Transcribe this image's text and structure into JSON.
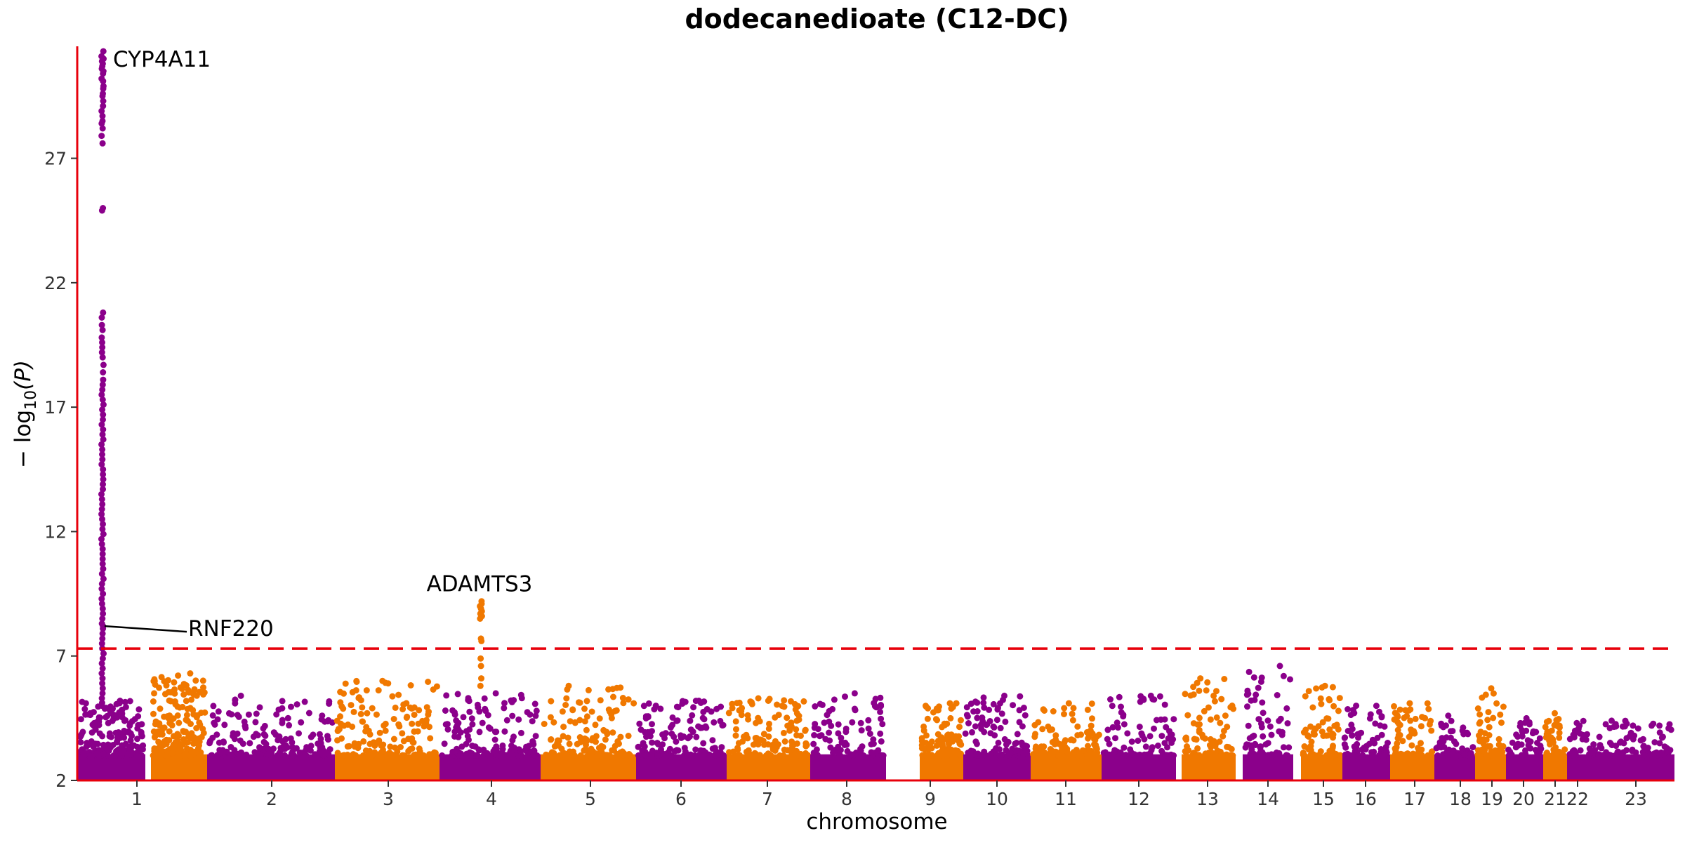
{
  "chart_data": {
    "type": "scatter",
    "subtype": "manhattan",
    "title": "dodecanedioate (C12-DC)",
    "xlabel": "chromosome",
    "ylabel_parts": {
      "prefix": "− log",
      "subscript": "10",
      "suffix": "(P)"
    },
    "ylim": [
      2,
      31.5
    ],
    "yticks": [
      2,
      7,
      12,
      17,
      22,
      27
    ],
    "significance_threshold": 7.3,
    "colors": {
      "odd": "#8B008B",
      "even": "#F07800",
      "axis": "#E8000B",
      "threshold": "#E8000B",
      "text": "#000000"
    },
    "chromosomes": [
      {
        "label": "1",
        "n": 210,
        "peak": 5.2
      },
      {
        "label": "2",
        "n": 200,
        "peak": 6.3
      },
      {
        "label": "3",
        "n": 160,
        "peak": 5.4
      },
      {
        "label": "4",
        "n": 155,
        "peak": 6.0
      },
      {
        "label": "5",
        "n": 150,
        "peak": 5.5
      },
      {
        "label": "6",
        "n": 140,
        "peak": 5.8
      },
      {
        "label": "7",
        "n": 130,
        "peak": 5.2
      },
      {
        "label": "8",
        "n": 120,
        "peak": 5.3
      },
      {
        "label": "9",
        "n": 90,
        "peak": 5.5
      },
      {
        "label": "10",
        "n": 105,
        "peak": 5.1
      },
      {
        "label": "11",
        "n": 110,
        "peak": 5.4
      },
      {
        "label": "12",
        "n": 110,
        "peak": 5.1
      },
      {
        "label": "13",
        "n": 85,
        "peak": 5.4
      },
      {
        "label": "14",
        "n": 80,
        "peak": 6.1
      },
      {
        "label": "15",
        "n": 70,
        "peak": 6.6
      },
      {
        "label": "16",
        "n": 70,
        "peak": 5.8
      },
      {
        "label": "17",
        "n": 70,
        "peak": 5.0
      },
      {
        "label": "18",
        "n": 65,
        "peak": 5.1
      },
      {
        "label": "19",
        "n": 55,
        "peak": 4.6
      },
      {
        "label": "20",
        "n": 60,
        "peak": 5.7
      },
      {
        "label": "21",
        "n": 40,
        "peak": 4.5
      },
      {
        "label": "22",
        "n": 40,
        "peak": 4.7
      },
      {
        "label": "23",
        "n": 120,
        "peak": 4.4
      }
    ],
    "hit_loci": [
      {
        "gene": "CYP4A11",
        "chromosome": "1",
        "max_value": 31.3,
        "values": [
          31.3,
          31.1,
          31.0,
          30.9,
          30.8,
          30.7,
          30.6,
          30.5,
          30.4,
          30.2,
          30.1,
          29.9,
          29.8,
          29.6,
          29.5,
          29.3,
          29.1,
          28.9,
          28.7,
          28.5,
          28.4,
          28.2,
          27.9,
          27.6,
          25.0,
          24.9,
          20.8,
          20.6,
          20.3,
          20.1,
          19.8,
          19.6,
          19.4,
          19.2,
          19.0,
          18.7,
          18.4,
          18.1,
          17.9,
          17.7,
          17.5,
          17.3,
          17.1,
          16.9,
          16.7,
          16.5,
          16.3,
          16.1,
          15.9,
          15.7,
          15.5,
          15.3,
          15.1,
          14.9,
          14.7,
          14.5,
          14.3,
          14.1,
          13.9,
          13.7,
          13.5,
          13.3,
          13.1,
          12.9,
          12.7,
          12.5,
          12.3,
          12.1,
          11.9,
          11.7,
          11.5,
          11.3,
          11.1,
          10.9,
          10.7,
          10.5,
          10.3,
          10.1,
          9.9,
          9.7,
          9.5,
          9.3,
          9.1,
          8.9,
          8.7,
          8.5,
          8.3,
          8.1,
          7.9,
          7.7,
          7.5,
          7.3,
          7.1,
          6.9,
          6.7,
          6.5,
          6.3,
          6.1,
          5.9,
          5.7,
          5.5,
          5.3
        ]
      },
      {
        "gene": "RNF220",
        "chromosome": "1",
        "max_value": 8.2,
        "values": [
          8.2
        ]
      },
      {
        "gene": "ADAMTS3",
        "chromosome": "4",
        "max_value": 9.2,
        "values": [
          9.2,
          9.1,
          9.0,
          8.9,
          8.8,
          8.7,
          8.6,
          8.5,
          7.7,
          7.6,
          6.9,
          6.6,
          6.1,
          5.8
        ]
      }
    ]
  }
}
